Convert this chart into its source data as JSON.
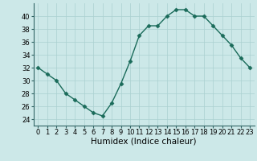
{
  "x": [
    0,
    1,
    2,
    3,
    4,
    5,
    6,
    7,
    8,
    9,
    10,
    11,
    12,
    13,
    14,
    15,
    16,
    17,
    18,
    19,
    20,
    21,
    22,
    23
  ],
  "y": [
    32,
    31,
    30,
    28,
    27,
    26,
    25,
    24.5,
    26.5,
    29.5,
    33,
    37,
    38.5,
    38.5,
    40,
    41,
    41,
    40,
    40,
    38.5,
    37,
    35.5,
    33.5,
    32
  ],
  "line_color": "#1a6b5a",
  "marker_color": "#1a6b5a",
  "bg_color": "#cce8e8",
  "grid_color": "#aad0d0",
  "xlabel": "Humidex (Indice chaleur)",
  "ylim": [
    23,
    42
  ],
  "xlim": [
    -0.5,
    23.5
  ],
  "yticks": [
    24,
    26,
    28,
    30,
    32,
    34,
    36,
    38,
    40
  ],
  "xticks": [
    0,
    1,
    2,
    3,
    4,
    5,
    6,
    7,
    8,
    9,
    10,
    11,
    12,
    13,
    14,
    15,
    16,
    17,
    18,
    19,
    20,
    21,
    22,
    23
  ],
  "xtick_labels": [
    "0",
    "1",
    "2",
    "3",
    "4",
    "5",
    "6",
    "7",
    "8",
    "9",
    "10",
    "11",
    "12",
    "13",
    "14",
    "15",
    "16",
    "17",
    "18",
    "19",
    "20",
    "21",
    "22",
    "23"
  ],
  "ytick_labels": [
    "24",
    "26",
    "28",
    "30",
    "32",
    "34",
    "36",
    "38",
    "40"
  ],
  "marker": "D",
  "markersize": 2.5,
  "linewidth": 1.0,
  "xlabel_fontsize": 7.5,
  "tick_fontsize": 6
}
